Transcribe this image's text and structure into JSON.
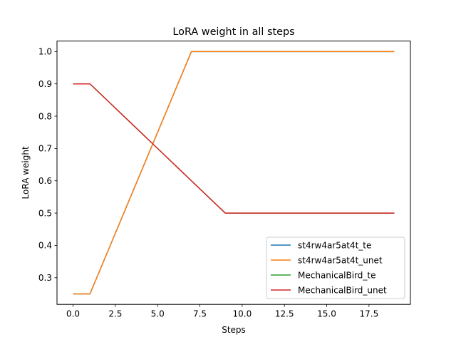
{
  "chart_data": {
    "type": "line",
    "title": "LoRA weight in all steps",
    "xlabel": "Steps",
    "ylabel": "LoRA weight",
    "xlim": [
      -0.95,
      19.95
    ],
    "ylim": [
      0.2175,
      1.0325
    ],
    "xticks": [
      0.0,
      2.5,
      5.0,
      7.5,
      10.0,
      12.5,
      15.0,
      17.5
    ],
    "xtick_labels": [
      "0.0",
      "2.5",
      "5.0",
      "7.5",
      "10.0",
      "12.5",
      "15.0",
      "17.5"
    ],
    "yticks": [
      0.3,
      0.4,
      0.5,
      0.6,
      0.7,
      0.8,
      0.9,
      1.0
    ],
    "ytick_labels": [
      "0.3",
      "0.4",
      "0.5",
      "0.6",
      "0.7",
      "0.8",
      "0.9",
      "1.0"
    ],
    "grid": false,
    "legend_position": "lower-right",
    "x": [
      0,
      1,
      2,
      3,
      4,
      5,
      6,
      7,
      8,
      9,
      10,
      11,
      12,
      13,
      14,
      15,
      16,
      17,
      18,
      19
    ],
    "series": [
      {
        "name": "st4rw4ar5at4t_te",
        "color": "#1f77b4",
        "values": [
          0.25,
          0.25,
          0.375,
          0.5,
          0.625,
          0.75,
          0.875,
          1.0,
          1.0,
          1.0,
          1.0,
          1.0,
          1.0,
          1.0,
          1.0,
          1.0,
          1.0,
          1.0,
          1.0,
          1.0
        ]
      },
      {
        "name": "st4rw4ar5at4t_unet",
        "color": "#ff7f0e",
        "values": [
          0.25,
          0.25,
          0.375,
          0.5,
          0.625,
          0.75,
          0.875,
          1.0,
          1.0,
          1.0,
          1.0,
          1.0,
          1.0,
          1.0,
          1.0,
          1.0,
          1.0,
          1.0,
          1.0,
          1.0
        ]
      },
      {
        "name": "MechanicalBird_te",
        "color": "#2ca02c",
        "values": [
          0.9,
          0.9,
          0.85,
          0.8,
          0.75,
          0.7,
          0.65,
          0.6,
          0.55,
          0.5,
          0.5,
          0.5,
          0.5,
          0.5,
          0.5,
          0.5,
          0.5,
          0.5,
          0.5,
          0.5
        ]
      },
      {
        "name": "MechanicalBird_unet",
        "color": "#d62728",
        "values": [
          0.9,
          0.9,
          0.85,
          0.8,
          0.75,
          0.7,
          0.65,
          0.6,
          0.55,
          0.5,
          0.5,
          0.5,
          0.5,
          0.5,
          0.5,
          0.5,
          0.5,
          0.5,
          0.5,
          0.5
        ]
      }
    ]
  }
}
